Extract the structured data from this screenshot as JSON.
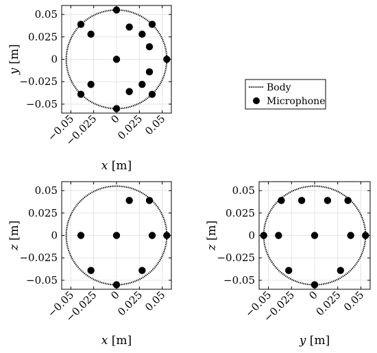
{
  "chart_data": [
    {
      "type": "scatter",
      "panel": "xy",
      "xlabel_var": "x",
      "ylabel_var": "y",
      "unit": "[m]",
      "xlim": [
        -0.06,
        0.06
      ],
      "ylim": [
        -0.06,
        0.06
      ],
      "xticks": [
        "−0.05",
        "−0.025",
        "0",
        "0.025",
        "0.05"
      ],
      "yticks": [
        "0.05",
        "0.025",
        "0",
        "−0.025",
        "−0.05"
      ],
      "grid": true,
      "body_radius": 0.055,
      "microphones": [
        {
          "x": 0,
          "y": 0.055
        },
        {
          "x": 0,
          "y": 0
        },
        {
          "x": 0,
          "y": -0.055
        },
        {
          "x": -0.039,
          "y": 0.039
        },
        {
          "x": -0.028,
          "y": 0.028
        },
        {
          "x": -0.039,
          "y": -0.039
        },
        {
          "x": -0.028,
          "y": -0.028
        },
        {
          "x": 0.014,
          "y": 0.036
        },
        {
          "x": 0.028,
          "y": 0.028
        },
        {
          "x": 0.039,
          "y": 0.039
        },
        {
          "x": 0.036,
          "y": 0.014
        },
        {
          "x": 0.055,
          "y": 0
        },
        {
          "x": 0.036,
          "y": -0.014
        },
        {
          "x": 0.028,
          "y": -0.028
        },
        {
          "x": 0.039,
          "y": -0.039
        },
        {
          "x": 0.014,
          "y": -0.036
        }
      ]
    },
    {
      "type": "scatter",
      "panel": "xz",
      "xlabel_var": "x",
      "ylabel_var": "z",
      "unit": "[m]",
      "xlim": [
        -0.06,
        0.06
      ],
      "ylim": [
        -0.06,
        0.06
      ],
      "xticks": [
        "−0.05",
        "−0.025",
        "0",
        "0.025",
        "0.05"
      ],
      "yticks": [
        "0.05",
        "0.025",
        "0",
        "−0.025",
        "−0.05"
      ],
      "grid": true,
      "body_radius": 0.055,
      "microphones": [
        {
          "x": 0,
          "y": -0.055
        },
        {
          "x": 0,
          "y": 0
        },
        {
          "x": -0.039,
          "y": 0
        },
        {
          "x": 0.039,
          "y": 0
        },
        {
          "x": 0.055,
          "y": 0
        },
        {
          "x": 0.014,
          "y": 0.039
        },
        {
          "x": 0.036,
          "y": 0.039
        },
        {
          "x": -0.028,
          "y": -0.039
        },
        {
          "x": 0.028,
          "y": -0.039
        }
      ]
    },
    {
      "type": "scatter",
      "panel": "yz",
      "xlabel_var": "y",
      "ylabel_var": "z",
      "unit": "[m]",
      "xlim": [
        -0.06,
        0.06
      ],
      "ylim": [
        -0.06,
        0.06
      ],
      "xticks": [
        "−0.05",
        "−0.025",
        "0",
        "0.025",
        "0.05"
      ],
      "yticks": [
        "0.05",
        "0.025",
        "0",
        "−0.025",
        "−0.05"
      ],
      "grid": true,
      "body_radius": 0.055,
      "microphones": [
        {
          "x": -0.055,
          "y": 0
        },
        {
          "x": -0.039,
          "y": 0
        },
        {
          "x": 0,
          "y": 0
        },
        {
          "x": 0.039,
          "y": 0
        },
        {
          "x": 0.055,
          "y": 0
        },
        {
          "x": -0.036,
          "y": 0.039
        },
        {
          "x": -0.014,
          "y": 0.039
        },
        {
          "x": 0.014,
          "y": 0.039
        },
        {
          "x": 0.036,
          "y": 0.039
        },
        {
          "x": -0.028,
          "y": -0.039
        },
        {
          "x": 0.028,
          "y": -0.039
        },
        {
          "x": 0,
          "y": -0.055
        }
      ]
    }
  ],
  "legend": {
    "placement": "right-middle",
    "entries": [
      {
        "label": "Body",
        "marker": "dotted-line"
      },
      {
        "label": "Microphone",
        "marker": "filled-circle"
      }
    ]
  }
}
